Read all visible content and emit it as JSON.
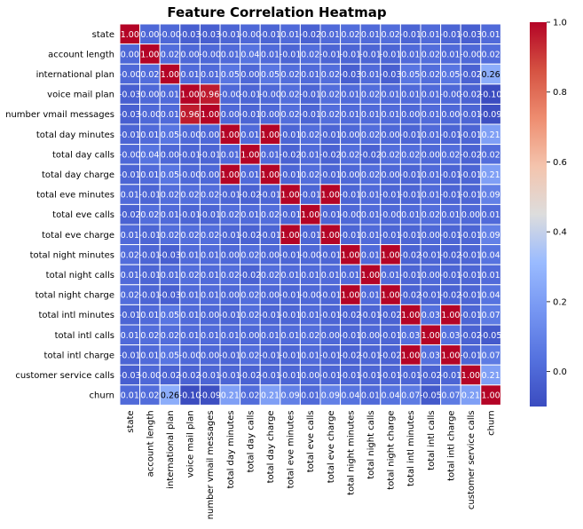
{
  "chart_data": {
    "type": "heatmap",
    "title": "Feature Correlation Heatmap",
    "xlabel": "",
    "ylabel": "",
    "colormap": "coolwarm",
    "grid": true,
    "grid_color": "#ffffff",
    "value_range": [
      -0.1,
      1.0
    ],
    "colorbar": {
      "placement": "right",
      "ticks": [
        -0.0,
        0.2,
        0.4,
        0.6,
        0.8,
        1.0
      ],
      "tick_labels": [
        "0.0",
        "0.2",
        "0.4",
        "0.6",
        "0.8",
        "1.0"
      ]
    },
    "labels": [
      "state",
      "account length",
      "international plan",
      "voice mail plan",
      "number vmail messages",
      "total day minutes",
      "total day calls",
      "total day charge",
      "total eve minutes",
      "total eve calls",
      "total eve charge",
      "total night minutes",
      "total night calls",
      "total night charge",
      "total intl minutes",
      "total intl calls",
      "total intl charge",
      "customer service calls",
      "churn"
    ],
    "values": [
      [
        1.0,
        0.0,
        -0.0,
        -0.03,
        -0.03,
        -0.01,
        -0.0,
        -0.01,
        0.01,
        -0.02,
        0.01,
        0.02,
        0.01,
        0.02,
        -0.01,
        0.01,
        -0.01,
        -0.03,
        0.01
      ],
      [
        0.0,
        1.0,
        0.02,
        0.0,
        -0.0,
        0.01,
        0.04,
        0.01,
        -0.01,
        0.02,
        -0.01,
        -0.01,
        -0.01,
        -0.01,
        0.01,
        0.02,
        0.01,
        -0.0,
        0.02
      ],
      [
        -0.0,
        0.02,
        1.0,
        0.01,
        0.01,
        0.05,
        0.0,
        0.05,
        0.02,
        0.01,
        0.02,
        -0.03,
        0.01,
        -0.03,
        0.05,
        0.02,
        0.05,
        -0.02,
        0.26
      ],
      [
        -0.03,
        0.0,
        0.01,
        1.0,
        0.96,
        -0.0,
        -0.01,
        -0.0,
        0.02,
        -0.01,
        0.02,
        0.01,
        0.02,
        0.01,
        0.01,
        0.01,
        -0.0,
        -0.02,
        -0.1
      ],
      [
        -0.03,
        -0.0,
        0.01,
        0.96,
        1.0,
        0.0,
        -0.01,
        0.0,
        0.02,
        -0.01,
        0.02,
        0.01,
        0.01,
        0.01,
        0.0,
        0.01,
        0.0,
        -0.01,
        -0.09
      ],
      [
        -0.01,
        0.01,
        0.05,
        -0.0,
        0.0,
        1.0,
        0.01,
        1.0,
        -0.01,
        0.02,
        -0.01,
        0.0,
        0.02,
        0.0,
        -0.01,
        0.01,
        -0.01,
        -0.01,
        0.21
      ],
      [
        -0.0,
        0.04,
        0.0,
        -0.01,
        -0.01,
        0.01,
        1.0,
        0.01,
        -0.02,
        0.01,
        -0.02,
        0.02,
        -0.02,
        0.02,
        0.02,
        0.0,
        0.02,
        -0.02,
        0.02
      ],
      [
        -0.01,
        0.01,
        0.05,
        -0.0,
        0.0,
        1.0,
        0.01,
        1.0,
        -0.01,
        0.02,
        -0.01,
        0.0,
        0.02,
        0.0,
        -0.01,
        0.01,
        -0.01,
        -0.01,
        0.21
      ],
      [
        0.01,
        -0.01,
        0.02,
        0.02,
        0.02,
        -0.01,
        -0.02,
        -0.01,
        1.0,
        -0.01,
        1.0,
        -0.01,
        0.01,
        -0.01,
        -0.01,
        0.01,
        -0.01,
        -0.01,
        0.09
      ],
      [
        -0.02,
        0.02,
        0.01,
        -0.01,
        -0.01,
        0.02,
        0.01,
        0.02,
        -0.01,
        1.0,
        -0.01,
        -0.0,
        0.01,
        -0.0,
        0.01,
        0.02,
        0.01,
        0.0,
        0.01
      ],
      [
        0.01,
        -0.01,
        0.02,
        0.02,
        0.02,
        -0.01,
        -0.02,
        -0.01,
        1.0,
        -0.01,
        1.0,
        -0.01,
        0.01,
        -0.01,
        -0.01,
        0.0,
        -0.01,
        -0.01,
        0.09
      ],
      [
        0.02,
        -0.01,
        -0.03,
        0.01,
        0.01,
        0.0,
        0.02,
        0.0,
        -0.01,
        -0.0,
        -0.01,
        1.0,
        0.01,
        1.0,
        -0.02,
        -0.01,
        -0.02,
        -0.01,
        0.04
      ],
      [
        0.01,
        -0.01,
        0.01,
        0.02,
        0.01,
        0.02,
        -0.02,
        0.02,
        0.01,
        0.01,
        0.01,
        0.01,
        1.0,
        0.01,
        -0.01,
        0.0,
        -0.01,
        -0.01,
        0.01
      ],
      [
        0.02,
        -0.01,
        -0.03,
        0.01,
        0.01,
        0.0,
        0.02,
        0.0,
        -0.01,
        -0.0,
        -0.01,
        1.0,
        0.01,
        1.0,
        -0.02,
        -0.01,
        -0.02,
        -0.01,
        0.04
      ],
      [
        -0.01,
        0.01,
        0.05,
        0.01,
        0.0,
        -0.01,
        0.02,
        -0.01,
        -0.01,
        0.01,
        -0.01,
        -0.02,
        -0.01,
        -0.02,
        1.0,
        0.03,
        1.0,
        -0.01,
        0.07
      ],
      [
        0.01,
        0.02,
        0.02,
        0.01,
        0.01,
        0.01,
        0.0,
        0.01,
        0.01,
        0.02,
        0.0,
        -0.01,
        0.0,
        -0.01,
        0.03,
        1.0,
        0.03,
        -0.02,
        -0.05
      ],
      [
        -0.01,
        0.01,
        0.05,
        -0.0,
        0.0,
        -0.01,
        0.02,
        -0.01,
        -0.01,
        0.01,
        -0.01,
        -0.02,
        -0.01,
        -0.02,
        1.0,
        0.03,
        1.0,
        -0.01,
        0.07
      ],
      [
        -0.03,
        -0.0,
        -0.02,
        -0.02,
        -0.01,
        -0.01,
        -0.02,
        -0.01,
        -0.01,
        0.0,
        -0.01,
        -0.01,
        -0.01,
        -0.01,
        -0.01,
        -0.02,
        -0.01,
        1.0,
        0.21
      ],
      [
        0.01,
        0.02,
        0.26,
        -0.1,
        -0.09,
        0.21,
        0.02,
        0.21,
        0.09,
        0.01,
        0.09,
        0.04,
        0.01,
        0.04,
        0.07,
        -0.05,
        0.07,
        0.21,
        1.0
      ]
    ]
  }
}
